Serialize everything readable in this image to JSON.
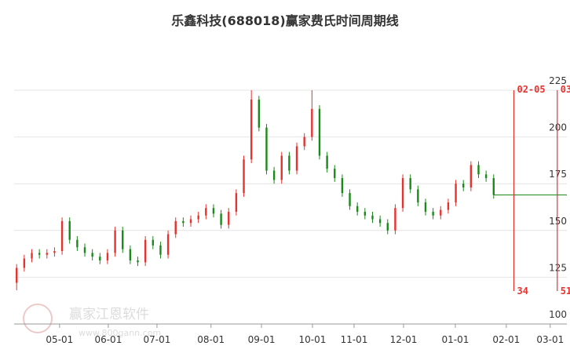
{
  "chart_data": {
    "type": "candlestick",
    "title": "乐鑫科技(688018)赢家费氏时间周期线",
    "watermark": "赢家江恩软件",
    "watermark_url": "www.800gann.com",
    "up_color": "#e8322f",
    "down_color": "#1a8a1a",
    "x": [
      0,
      3,
      6,
      9,
      12,
      15,
      18,
      21,
      24,
      27,
      30,
      33,
      36,
      39,
      42,
      45,
      48,
      51,
      54,
      57,
      60,
      63,
      66,
      69,
      72,
      75,
      78,
      81,
      84,
      87,
      90,
      93,
      96,
      99,
      102,
      105,
      108,
      111,
      114,
      117,
      120,
      123,
      126,
      129,
      132,
      135,
      138,
      141,
      144,
      147,
      150,
      153,
      156,
      159,
      162,
      165,
      168,
      171,
      174,
      177,
      180,
      183,
      186,
      189
    ],
    "open": [
      122,
      130,
      135,
      138,
      137,
      138,
      139,
      155,
      145,
      141,
      138,
      136,
      134,
      138,
      150,
      140,
      134,
      133,
      145,
      142,
      137,
      148,
      155,
      154,
      156,
      158,
      162,
      159,
      153,
      160,
      170,
      188,
      220,
      205,
      182,
      177,
      190,
      182,
      195,
      200,
      215,
      190,
      183,
      178,
      170,
      163,
      160,
      158,
      156,
      154,
      150,
      162,
      178,
      172,
      165,
      160,
      158,
      161,
      165,
      175,
      173,
      185,
      180,
      178
    ],
    "high": [
      132,
      137,
      140,
      140,
      140,
      141,
      157,
      157,
      147,
      143,
      140,
      138,
      140,
      152,
      152,
      142,
      136,
      147,
      147,
      144,
      150,
      157,
      157,
      158,
      160,
      164,
      164,
      161,
      162,
      172,
      190,
      225,
      222,
      207,
      184,
      192,
      192,
      197,
      202,
      225,
      217,
      192,
      185,
      180,
      172,
      165,
      162,
      160,
      158,
      156,
      164,
      180,
      180,
      174,
      167,
      162,
      163,
      167,
      177,
      177,
      187,
      187,
      182,
      180
    ],
    "low": [
      118,
      128,
      133,
      135,
      135,
      136,
      137,
      143,
      139,
      136,
      134,
      132,
      132,
      136,
      138,
      132,
      131,
      131,
      140,
      135,
      135,
      146,
      152,
      152,
      154,
      156,
      157,
      151,
      151,
      158,
      168,
      186,
      203,
      180,
      175,
      175,
      180,
      180,
      193,
      198,
      188,
      181,
      176,
      168,
      161,
      158,
      156,
      154,
      152,
      148,
      148,
      160,
      170,
      163,
      158,
      156,
      156,
      159,
      163,
      171,
      171,
      178,
      176,
      167
    ],
    "close": [
      130,
      135,
      138,
      137,
      138,
      139,
      155,
      145,
      141,
      138,
      136,
      134,
      138,
      150,
      140,
      134,
      133,
      145,
      142,
      137,
      148,
      155,
      154,
      156,
      158,
      162,
      159,
      153,
      160,
      170,
      188,
      220,
      205,
      182,
      177,
      190,
      182,
      195,
      200,
      215,
      190,
      183,
      178,
      170,
      163,
      160,
      158,
      156,
      154,
      150,
      162,
      178,
      172,
      165,
      160,
      158,
      161,
      165,
      175,
      173,
      185,
      180,
      178,
      169
    ],
    "xlim": [
      -1,
      218
    ],
    "xticks": [
      {
        "value": 17,
        "label": "05-01"
      },
      {
        "value": 36.3,
        "label": "06-01"
      },
      {
        "value": 55.6,
        "label": "07-01"
      },
      {
        "value": 77,
        "label": "08-01"
      },
      {
        "value": 97,
        "label": "09-01"
      },
      {
        "value": 117.2,
        "label": "10-01"
      },
      {
        "value": 133.7,
        "label": "11-01"
      },
      {
        "value": 153.3,
        "label": "12-01"
      },
      {
        "value": 173.8,
        "label": "01-01"
      },
      {
        "value": 194,
        "label": "02-01"
      },
      {
        "value": 211.4,
        "label": "03-01"
      }
    ],
    "ylim": [
      100,
      225
    ],
    "yticks": [
      100,
      125,
      150,
      175,
      200,
      225
    ],
    "grid": true,
    "annotations": [
      {
        "x": 197,
        "label_top": "02-05",
        "label_bottom": "34",
        "color": "#e8322f"
      },
      {
        "x": 214.2,
        "label_top": "03",
        "label_bottom": "51",
        "color": "#e8322f"
      }
    ]
  }
}
